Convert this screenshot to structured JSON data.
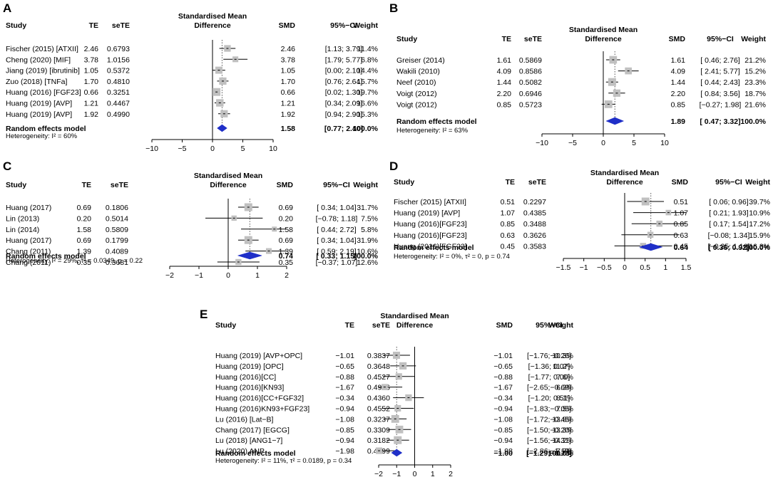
{
  "chart_data": [
    {
      "type": "forest",
      "panel": "A",
      "headers": [
        "Study",
        "TE",
        "seTE",
        "Standardised Mean",
        "Difference",
        "SMD",
        "95%−CI",
        "Weight"
      ],
      "rows": [
        {
          "study": "Fischer (2015) [ATXII]",
          "te": "2.46",
          "sete": "0.6793",
          "smd": "2.46",
          "ci": "[1.13; 3.79]",
          "weight": "11.4%",
          "est": 2.46,
          "lo": 1.13,
          "hi": 3.79,
          "w": 11.4
        },
        {
          "study": "Cheng (2020) [MIF]",
          "te": "3.78",
          "sete": "1.0156",
          "smd": "3.78",
          "ci": "[1.79; 5.77]",
          "weight": "6.8%",
          "est": 3.78,
          "lo": 1.79,
          "hi": 5.77,
          "w": 6.8
        },
        {
          "study": "Jiang (2019) [ibrutinib]",
          "te": "1.05",
          "sete": "0.5372",
          "smd": "1.05",
          "ci": "[0.00; 2.10]",
          "weight": "14.4%",
          "est": 1.05,
          "lo": 0.0,
          "hi": 2.1,
          "w": 14.4
        },
        {
          "study": "Zuo (2018) [TNFa]",
          "te": "1.70",
          "sete": "0.4810",
          "smd": "1.70",
          "ci": "[0.76; 2.64]",
          "weight": "15.7%",
          "est": 1.7,
          "lo": 0.76,
          "hi": 2.64,
          "w": 15.7
        },
        {
          "study": "Huang (2016) [FGF23]",
          "te": "0.66",
          "sete": "0.3251",
          "smd": "0.66",
          "ci": "[0.02; 1.30]",
          "weight": "19.7%",
          "est": 0.66,
          "lo": 0.02,
          "hi": 1.3,
          "w": 19.7
        },
        {
          "study": "Huang (2019) [AVP]",
          "te": "1.21",
          "sete": "0.4467",
          "smd": "1.21",
          "ci": "[0.34; 2.09]",
          "weight": "16.6%",
          "est": 1.21,
          "lo": 0.34,
          "hi": 2.09,
          "w": 16.6
        },
        {
          "study": "Huang (2019) [AVP]",
          "te": "1.92",
          "sete": "0.4990",
          "smd": "1.92",
          "ci": "[0.94; 2.90]",
          "weight": "15.3%",
          "est": 1.92,
          "lo": 0.94,
          "hi": 2.9,
          "w": 15.3
        }
      ],
      "summary": {
        "label": "Random effects model",
        "smd": "1.58",
        "ci": "[0.77; 2.40]",
        "weight": "100.0%",
        "est": 1.58,
        "lo": 0.77,
        "hi": 2.4
      },
      "heterogeneity": "Heterogeneity: I² = 60%",
      "xticks": [
        -10,
        -5,
        0,
        5,
        10
      ],
      "xtick_labels": [
        "−10",
        "−5",
        "0",
        "5",
        "10"
      ],
      "xlim": [
        -10,
        10
      ]
    },
    {
      "type": "forest",
      "panel": "B",
      "headers": [
        "Study",
        "TE",
        "seTE",
        "Standardised Mean",
        "Difference",
        "SMD",
        "95%−CI",
        "Weight"
      ],
      "rows": [
        {
          "study": "Greiser (2014)",
          "te": "1.61",
          "sete": "0.5869",
          "smd": "1.61",
          "ci": "[ 0.46; 2.76]",
          "weight": "21.2%",
          "est": 1.61,
          "lo": 0.46,
          "hi": 2.76,
          "w": 21.2
        },
        {
          "study": "Wakili (2010)",
          "te": "4.09",
          "sete": "0.8586",
          "smd": "4.09",
          "ci": "[ 2.41; 5.77]",
          "weight": "15.2%",
          "est": 4.09,
          "lo": 2.41,
          "hi": 5.77,
          "w": 15.2
        },
        {
          "study": "Neef (2010)",
          "te": "1.44",
          "sete": "0.5082",
          "smd": "1.44",
          "ci": "[ 0.44; 2.43]",
          "weight": "23.3%",
          "est": 1.44,
          "lo": 0.44,
          "hi": 2.43,
          "w": 23.3
        },
        {
          "study": "Voigt (2012)",
          "te": "2.20",
          "sete": "0.6946",
          "smd": "2.20",
          "ci": "[ 0.84; 3.56]",
          "weight": "18.7%",
          "est": 2.2,
          "lo": 0.84,
          "hi": 3.56,
          "w": 18.7
        },
        {
          "study": "Voigt (2012)",
          "te": "0.85",
          "sete": "0.5723",
          "smd": "0.85",
          "ci": "[−0.27; 1.98]",
          "weight": "21.6%",
          "est": 0.85,
          "lo": -0.27,
          "hi": 1.98,
          "w": 21.6
        }
      ],
      "summary": {
        "label": "Random effects model",
        "smd": "1.89",
        "ci": "[ 0.47; 3.32]",
        "weight": "100.0%",
        "est": 1.89,
        "lo": 0.47,
        "hi": 3.32
      },
      "heterogeneity": "Heterogeneity: I² = 63%",
      "xticks": [
        -10,
        -5,
        0,
        5,
        10
      ],
      "xtick_labels": [
        "−10",
        "−5",
        "0",
        "5",
        "10"
      ],
      "xlim": [
        -10,
        10
      ]
    },
    {
      "type": "forest",
      "panel": "C",
      "headers": [
        "Study",
        "TE",
        "seTE",
        "Standardised Mean",
        "Difference",
        "SMD",
        "95%−CI",
        "Weight"
      ],
      "rows": [
        {
          "study": "Huang (2017)",
          "te": "0.69",
          "sete": "0.1806",
          "smd": "0.69",
          "ci": "[ 0.34; 1.04]",
          "weight": "31.7%",
          "est": 0.69,
          "lo": 0.34,
          "hi": 1.04,
          "w": 31.7
        },
        {
          "study": "Lin (2013)",
          "te": "0.20",
          "sete": "0.5014",
          "smd": "0.20",
          "ci": "[−0.78; 1.18]",
          "weight": "7.5%",
          "est": 0.2,
          "lo": -0.78,
          "hi": 1.18,
          "w": 7.5
        },
        {
          "study": "Lin (2014)",
          "te": "1.58",
          "sete": "0.5809",
          "smd": "1.58",
          "ci": "[ 0.44; 2.72]",
          "weight": "5.8%",
          "est": 1.58,
          "lo": 0.44,
          "hi": 2.72,
          "w": 5.8
        },
        {
          "study": "Huang (2017)",
          "te": "0.69",
          "sete": "0.1799",
          "smd": "0.69",
          "ci": "[ 0.34; 1.04]",
          "weight": "31.9%",
          "est": 0.69,
          "lo": 0.34,
          "hi": 1.04,
          "w": 31.9
        },
        {
          "study": "Chang (2011)",
          "te": "1.39",
          "sete": "0.4089",
          "smd": "1.39",
          "ci": "[ 0.59; 2.19]",
          "weight": "10.6%",
          "est": 1.39,
          "lo": 0.59,
          "hi": 2.19,
          "w": 10.6
        },
        {
          "study": "Chang (2011)",
          "te": "0.35",
          "sete": "0.3681",
          "smd": "0.35",
          "ci": "[−0.37; 1.07]",
          "weight": "12.6%",
          "est": 0.35,
          "lo": -0.37,
          "hi": 1.07,
          "w": 12.6
        }
      ],
      "summary": {
        "label": "Random effects model",
        "smd": "0.74",
        "ci": "[ 0.33; 1.15]",
        "weight": "100.0%",
        "est": 0.74,
        "lo": 0.33,
        "hi": 1.15
      },
      "heterogeneity": "Heterogeneity: I² = 29%, τ² = 0.0349, p = 0.22",
      "xticks": [
        -2,
        -1,
        0,
        1,
        2
      ],
      "xtick_labels": [
        "−2",
        "−1",
        "0",
        "1",
        "2"
      ],
      "xlim": [
        -2,
        2
      ]
    },
    {
      "type": "forest",
      "panel": "D",
      "headers": [
        "Study",
        "TE",
        "seTE",
        "Standardised Mean",
        "Difference",
        "SMD",
        "95%−CI",
        "Weight"
      ],
      "rows": [
        {
          "study": "Fischer (2015) [ATXII]",
          "te": "0.51",
          "sete": "0.2297",
          "smd": "0.51",
          "ci": "[ 0.06; 0.96]",
          "weight": "39.7%",
          "est": 0.51,
          "lo": 0.06,
          "hi": 0.96,
          "w": 39.7
        },
        {
          "study": "Huang (2019) [AVP]",
          "te": "1.07",
          "sete": "0.4385",
          "smd": "1.07",
          "ci": "[ 0.21; 1.93]",
          "weight": "10.9%",
          "est": 1.07,
          "lo": 0.21,
          "hi": 1.93,
          "w": 10.9
        },
        {
          "study": "Huang (2016)[FGF23]",
          "te": "0.85",
          "sete": "0.3488",
          "smd": "0.85",
          "ci": "[ 0.17; 1.54]",
          "weight": "17.2%",
          "est": 0.85,
          "lo": 0.17,
          "hi": 1.54,
          "w": 17.2
        },
        {
          "study": "Huang (2016)[FGF23]",
          "te": "0.63",
          "sete": "0.3626",
          "smd": "0.63",
          "ci": "[−0.08; 1.34]",
          "weight": "15.9%",
          "est": 0.63,
          "lo": -0.08,
          "hi": 1.34,
          "w": 15.9
        },
        {
          "study": "Huang (2016)[FGF23]",
          "te": "0.45",
          "sete": "0.3583",
          "smd": "0.45",
          "ci": "[−0.25; 1.16]",
          "weight": "16.3%",
          "est": 0.45,
          "lo": -0.25,
          "hi": 1.16,
          "w": 16.3
        }
      ],
      "summary": {
        "label": "Random effects model",
        "smd": "0.64",
        "ci": "[ 0.36; 0.92]",
        "weight": "100.0%",
        "est": 0.64,
        "lo": 0.36,
        "hi": 0.92
      },
      "heterogeneity": "Heterogeneity: I² = 0%, τ² = 0, p = 0.74",
      "xticks": [
        -1.5,
        -1,
        -0.5,
        0,
        0.5,
        1,
        1.5
      ],
      "xtick_labels": [
        "−1.5",
        "−1",
        "−0.5",
        "0",
        "0.5",
        "1",
        "1.5"
      ],
      "xlim": [
        -1.5,
        1.5
      ]
    },
    {
      "type": "forest",
      "panel": "E",
      "headers": [
        "Study",
        "TE",
        "seTE",
        "Standardised Mean",
        "Difference",
        "SMD",
        "95%−CI",
        "Weight"
      ],
      "rows": [
        {
          "study": "Huang (2019) [AVP+OPC]",
          "te": "−1.01",
          "sete": "0.3837",
          "smd": "−1.01",
          "ci": "[−1.76;−0.26]",
          "weight": "10.3%",
          "est": -1.01,
          "lo": -1.76,
          "hi": -0.26,
          "w": 10.3
        },
        {
          "study": "Huang (2019) [OPC]",
          "te": "−0.65",
          "sete": "0.3648",
          "smd": "−0.65",
          "ci": "[−1.36; 0.07]",
          "weight": "11.2%",
          "est": -0.65,
          "lo": -1.36,
          "hi": 0.07,
          "w": 11.2
        },
        {
          "study": "Huang (2016)[CC]",
          "te": "−0.88",
          "sete": "0.4527",
          "smd": "−0.88",
          "ci": "[−1.77; 0.00]",
          "weight": "7.6%",
          "est": -0.88,
          "lo": -1.77,
          "hi": 0.0,
          "w": 7.6
        },
        {
          "study": "Huang (2016)[KN93]",
          "te": "−1.67",
          "sete": "0.4996",
          "smd": "−1.67",
          "ci": "[−2.65;−0.69]",
          "weight": "6.3%",
          "est": -1.67,
          "lo": -2.65,
          "hi": -0.69,
          "w": 6.3
        },
        {
          "study": "Huang (2016)[CC+FGF32]",
          "te": "−0.34",
          "sete": "0.4360",
          "smd": "−0.34",
          "ci": "[−1.20; 0.51]",
          "weight": "8.1%",
          "est": -0.34,
          "lo": -1.2,
          "hi": 0.51,
          "w": 8.1
        },
        {
          "study": "Huang (2016)KN93+FGF23]",
          "te": "−0.94",
          "sete": "0.4552",
          "smd": "−0.94",
          "ci": "[−1.83;−0.05]",
          "weight": "7.5%",
          "est": -0.94,
          "lo": -1.83,
          "hi": -0.05,
          "w": 7.5
        },
        {
          "study": "Lu (2016) [Lat−B]",
          "te": "−1.08",
          "sete": "0.3237",
          "smd": "−1.08",
          "ci": "[−1.72;−0.45]",
          "weight": "13.8%",
          "est": -1.08,
          "lo": -1.72,
          "hi": -0.45,
          "w": 13.8
        },
        {
          "study": "Chang (2017) [EGCG]",
          "te": "−0.85",
          "sete": "0.3309",
          "smd": "−0.85",
          "ci": "[−1.50;−0.20]",
          "weight": "13.3%",
          "est": -0.85,
          "lo": -1.5,
          "hi": -0.2,
          "w": 13.3
        },
        {
          "study": "Lu (2018) [ANG1−7]",
          "te": "−0.94",
          "sete": "0.3182",
          "smd": "−0.94",
          "ci": "[−1.56;−0.31]",
          "weight": "14.2%",
          "est": -0.94,
          "lo": -1.56,
          "hi": -0.31,
          "w": 14.2
        },
        {
          "study": "Lu (2020) ANP",
          "te": "−1.98",
          "sete": "0.4499",
          "smd": "−1.98",
          "ci": "[−2.86;−1.10]",
          "weight": "7.7%",
          "est": -1.98,
          "lo": -2.86,
          "hi": -1.1,
          "w": 7.7
        }
      ],
      "summary": {
        "label": "Random effects model",
        "smd": "−1.00",
        "ci": "[−1.29;−0.70]",
        "weight": "100.0%",
        "est": -1.0,
        "lo": -1.29,
        "hi": -0.7
      },
      "heterogeneity": "Heterogeneity: I² = 11%, τ² = 0.0189, p = 0.34",
      "xticks": [
        -2,
        -1,
        0,
        1,
        2
      ],
      "xtick_labels": [
        "−2",
        "−1",
        "0",
        "1",
        "2"
      ],
      "xlim": [
        -2,
        2
      ]
    }
  ],
  "colors": {
    "summary_diamond": "#1f2fc8",
    "study_box": "#c0c0c0",
    "line": "#000000",
    "dotted_line": "#555555"
  }
}
